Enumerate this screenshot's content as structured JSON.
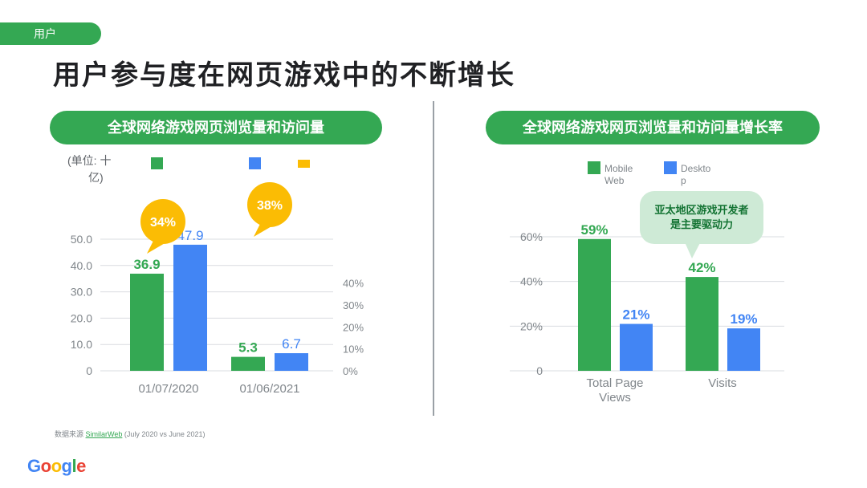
{
  "header": {
    "tag": "用户",
    "title": "用户参与度在网页游戏中的不断增长"
  },
  "left": {
    "pill": "全球网络游戏网页浏览量和访问量",
    "unit_line1": "(单位: 十",
    "unit_line2": "亿)",
    "legend_colors": [
      "#34a853",
      "#4285f4",
      "#fbbc04"
    ]
  },
  "right": {
    "pill": "全球网络游戏网页浏览量和访问量增长率",
    "legend": [
      {
        "name_l1": "Mobile",
        "name_l2": "Web",
        "color": "#34a853"
      },
      {
        "name_l1": "Deskto",
        "name_l2": "p",
        "color": "#4285f4"
      }
    ],
    "callout_l1": "亚太地区游戏开发者",
    "callout_l2": "是主要驱动力"
  },
  "footer": {
    "source_label": "数据来源",
    "source_link": "SimilarWeb",
    "source_range": "(July 2020 vs June 2021)",
    "logo_letters": [
      "G",
      "o",
      "o",
      "g",
      "l",
      "e"
    ],
    "logo_colors": [
      "#4285f4",
      "#ea4335",
      "#fbbc04",
      "#4285f4",
      "#34a853",
      "#ea4335"
    ]
  },
  "chart_data": [
    {
      "type": "bar",
      "categories": [
        "01/07/2020",
        "01/06/2021"
      ],
      "series": [
        {
          "values": [
            36.9,
            5.3
          ],
          "labels": [
            "36.9",
            "5.3"
          ],
          "color": "#34a853"
        },
        {
          "values": [
            47.9,
            6.7
          ],
          "labels": [
            "47.9",
            "6.7"
          ],
          "color": "#4285f4"
        }
      ],
      "ylim": [
        0,
        50
      ],
      "y_ticks": [
        "0",
        "10.0",
        "20.0",
        "30.0",
        "40.0",
        "50.0"
      ],
      "y2_ticks": [
        "0%",
        "10%",
        "20%",
        "30%",
        "40%"
      ],
      "callouts": [
        {
          "category": "01/07/2020",
          "value": 34,
          "label": "34%",
          "color": "#fbbc04"
        },
        {
          "category": "01/06/2021",
          "value": 38,
          "label": "38%",
          "color": "#fbbc04"
        }
      ]
    },
    {
      "type": "bar",
      "categories": [
        "Total Page Views",
        "Visits"
      ],
      "category_lines": [
        [
          "Total Page",
          "Views"
        ],
        [
          "Visits"
        ]
      ],
      "series": [
        {
          "name": "Mobile Web",
          "values": [
            59,
            42
          ],
          "labels": [
            "59%",
            "42%"
          ],
          "color": "#34a853"
        },
        {
          "name": "Desktop",
          "values": [
            21,
            19
          ],
          "labels": [
            "21%",
            "19%"
          ],
          "color": "#4285f4"
        }
      ],
      "ylim": [
        0,
        60
      ],
      "y_ticks": [
        "0",
        "20%",
        "40%",
        "60%"
      ]
    }
  ]
}
